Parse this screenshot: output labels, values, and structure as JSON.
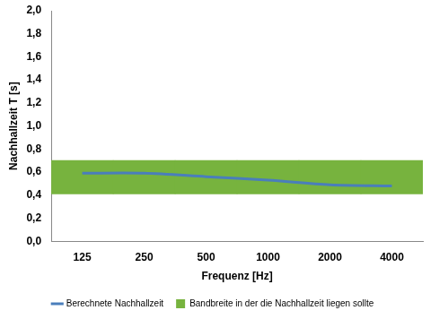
{
  "chart_data": {
    "type": "line",
    "x_label": "Frequenz [Hz]",
    "y_label": "Nachhallzeit T [s]",
    "categories": [
      "125",
      "250",
      "500",
      "1000",
      "2000",
      "4000"
    ],
    "series": [
      {
        "name": "Bandbreite in der die Nachhallzeit liegen sollte",
        "type": "band",
        "color": "#77b33e",
        "lower": [
          0.41,
          0.41,
          0.41,
          0.41,
          0.41,
          0.41
        ],
        "upper": [
          0.7,
          0.7,
          0.7,
          0.7,
          0.7,
          0.7
        ]
      },
      {
        "name": "Berechnete Nachhallzeit",
        "type": "line",
        "color": "#4a7ebb",
        "values": [
          0.59,
          0.59,
          0.56,
          0.53,
          0.49,
          0.48
        ]
      }
    ],
    "ylim": [
      0,
      2.0
    ],
    "yticks": [
      {
        "value": 0,
        "label": "0,0"
      },
      {
        "value": 0.2,
        "label": "0,2"
      },
      {
        "value": 0.4,
        "label": "0,4"
      },
      {
        "value": 0.6,
        "label": "0,6"
      },
      {
        "value": 0.8,
        "label": "0,8"
      },
      {
        "value": 1.0,
        "label": "1,0"
      },
      {
        "value": 1.2,
        "label": "1,2"
      },
      {
        "value": 1.4,
        "label": "1,4"
      },
      {
        "value": 1.6,
        "label": "1,6"
      },
      {
        "value": 1.8,
        "label": "1,8"
      },
      {
        "value": 2.0,
        "label": "2,0"
      }
    ],
    "grid": false,
    "legend": "bottom"
  }
}
